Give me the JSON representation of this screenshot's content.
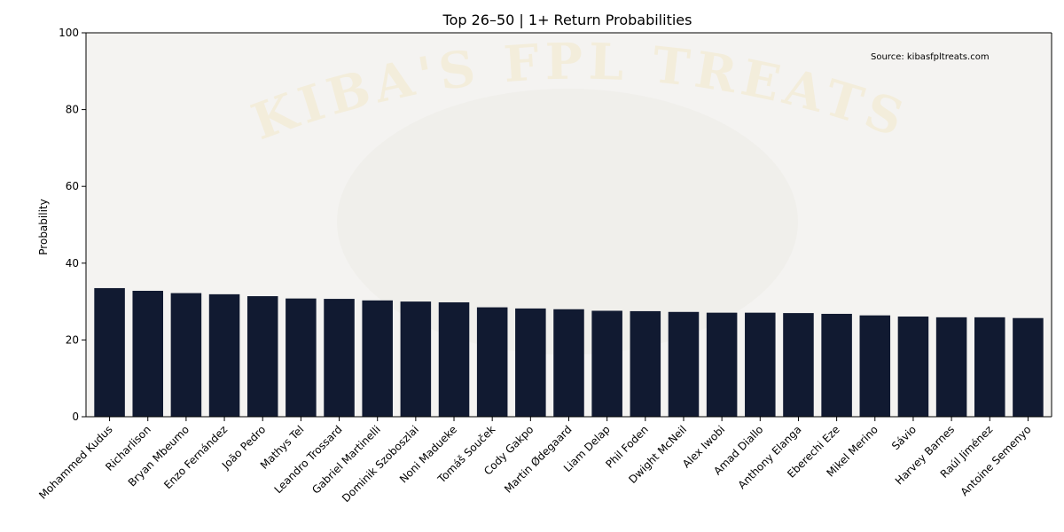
{
  "chart_data": {
    "type": "bar",
    "title": "Top 26–50 | 1+ Return Probabilities",
    "xlabel": "",
    "ylabel": "Probability",
    "ylim": [
      0,
      100
    ],
    "yticks": [
      "0",
      "20",
      "40",
      "60",
      "80",
      "100"
    ],
    "grid": false,
    "bar_color": "#111a31",
    "background_color": "#f4f3f1",
    "source_note": "Source: kibasfpltreats.com",
    "watermark_text": "KIBA'S FPL TREATS",
    "categories": [
      "Mohammed Kudus",
      "Richarlison",
      "Bryan Mbeumo",
      "Enzo Fernández",
      "João Pedro",
      "Mathys Tel",
      "Leandro Trossard",
      "Gabriel Martinelli",
      "Dominik Szoboszlai",
      "Noni Madueke",
      "Tomáš Souček",
      "Cody Gakpo",
      "Martin Ødegaard",
      "Liam Delap",
      "Phil Foden",
      "Dwight McNeil",
      "Alex Iwobi",
      "Amad Diallo",
      "Anthony Elanga",
      "Eberechi Eze",
      "Mikel Merino",
      "Sávio",
      "Harvey Barnes",
      "Raúl Jiménez",
      "Antoine Semenyo"
    ],
    "values": [
      33.5,
      32.8,
      32.2,
      31.9,
      31.4,
      30.8,
      30.7,
      30.3,
      30.0,
      29.8,
      28.5,
      28.2,
      28.0,
      27.6,
      27.5,
      27.3,
      27.1,
      27.1,
      27.0,
      26.8,
      26.4,
      26.1,
      25.9,
      25.9,
      25.7
    ]
  }
}
